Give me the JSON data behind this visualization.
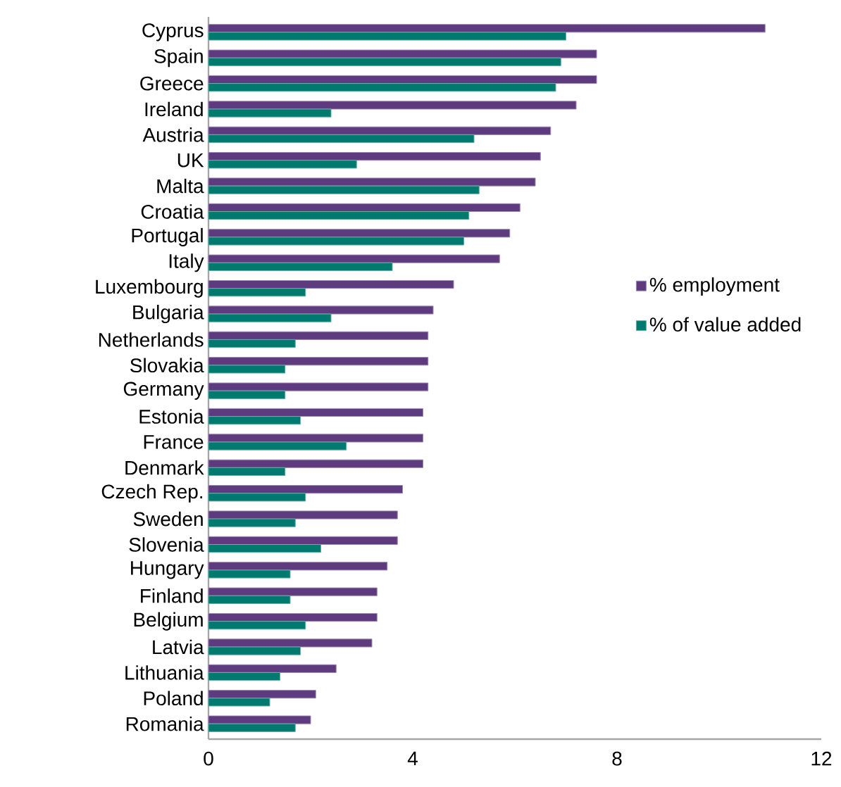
{
  "chart_data": {
    "type": "bar",
    "orientation": "horizontal",
    "categories": [
      "Cyprus",
      "Spain",
      "Greece",
      "Ireland",
      "Austria",
      "UK",
      "Malta",
      "Croatia",
      "Portugal",
      "Italy",
      "Luxembourg",
      "Bulgaria",
      "Netherlands",
      "Slovakia",
      "Germany",
      "Estonia",
      "France",
      "Denmark",
      "Czech Rep.",
      "Sweden",
      "Slovenia",
      "Hungary",
      "Finland",
      "Belgium",
      "Latvia",
      "Lithuania",
      "Poland",
      "Romania"
    ],
    "series": [
      {
        "name": "% employment",
        "color": "#5e3a7e",
        "values": [
          10.9,
          7.6,
          7.6,
          7.2,
          6.7,
          6.5,
          6.4,
          6.1,
          5.9,
          5.7,
          4.8,
          4.4,
          4.3,
          4.3,
          4.3,
          4.2,
          4.2,
          4.2,
          3.8,
          3.7,
          3.7,
          3.5,
          3.3,
          3.3,
          3.2,
          2.5,
          2.1,
          2.0
        ]
      },
      {
        "name": "% of value added",
        "color": "#007a6e",
        "values": [
          7.0,
          6.9,
          6.8,
          2.4,
          5.2,
          2.9,
          5.3,
          5.1,
          5.0,
          3.6,
          1.9,
          2.4,
          1.7,
          1.5,
          1.5,
          1.8,
          2.7,
          1.5,
          1.9,
          1.7,
          2.2,
          1.6,
          1.6,
          1.9,
          1.8,
          1.4,
          1.2,
          1.7
        ]
      }
    ],
    "xlim": [
      0,
      12
    ],
    "xticks": [
      0,
      4,
      8,
      12
    ],
    "grid": false,
    "legend": "right"
  }
}
